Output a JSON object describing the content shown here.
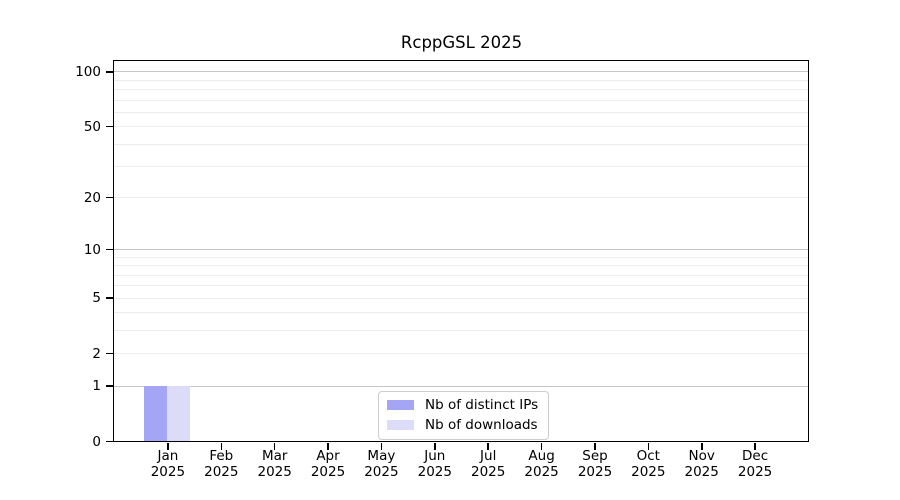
{
  "chart_data": {
    "type": "bar",
    "title": "RcppGSL 2025",
    "categories": [
      "Jan",
      "Feb",
      "Mar",
      "Apr",
      "May",
      "Jun",
      "Jul",
      "Aug",
      "Sep",
      "Oct",
      "Nov",
      "Dec"
    ],
    "category_year": "2025",
    "series": [
      {
        "name": "Nb of distinct IPs",
        "color": "#a5a5f5",
        "values": [
          1,
          0,
          0,
          0,
          0,
          0,
          0,
          0,
          0,
          0,
          0,
          0
        ]
      },
      {
        "name": "Nb of downloads",
        "color": "#dcdcf8",
        "values": [
          1,
          0,
          0,
          0,
          0,
          0,
          0,
          0,
          0,
          0,
          0,
          0
        ]
      }
    ],
    "xlabel": "",
    "ylabel": "",
    "yscale": "log1p",
    "ylim": [
      0,
      114
    ],
    "yticks": [
      0,
      1,
      2,
      5,
      10,
      20,
      50,
      100
    ],
    "grid": {
      "on": true,
      "orientation": "horizontal",
      "major": [
        1,
        10,
        100
      ],
      "minor": [
        2,
        3,
        4,
        5,
        6,
        7,
        8,
        9,
        20,
        30,
        40,
        50,
        60,
        70,
        80,
        90
      ]
    },
    "legend": {
      "position": "bottom-center"
    },
    "colors": {
      "major_grid": "#c6c6c6",
      "minor_grid": "#ededed",
      "axis": "#000000",
      "background": "#ffffff"
    }
  }
}
